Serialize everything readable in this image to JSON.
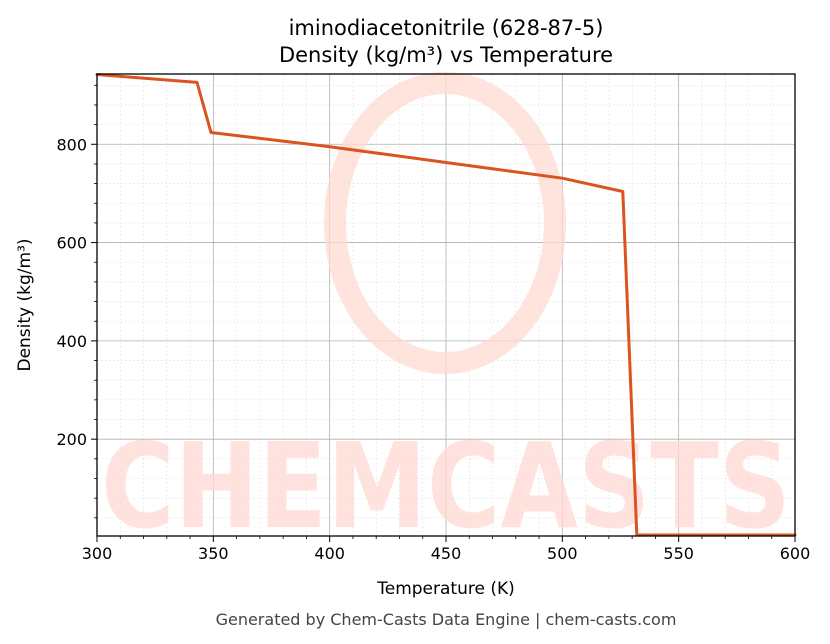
{
  "chart_data": {
    "type": "line",
    "title": "iminodiacetonitrile (628-87-5)",
    "subtitle": "Density (kg/m³) vs Temperature",
    "xlabel": "Temperature (K)",
    "ylabel": "Density (kg/m³)",
    "xlim": [
      300,
      600
    ],
    "ylim": [
      3,
      943
    ],
    "x_ticks": [
      300,
      350,
      400,
      450,
      500,
      550,
      600
    ],
    "y_ticks": [
      200,
      400,
      600,
      800
    ],
    "grid": true,
    "series": [
      {
        "color": "#d9541e",
        "x": [
          300,
          343,
          349,
          400,
          450,
          500,
          526,
          532,
          600
        ],
        "y": [
          942,
          926,
          824,
          795,
          763,
          731,
          704,
          5,
          5
        ]
      }
    ]
  },
  "footer": "Generated by Chem-Casts Data Engine | chem-casts.com",
  "watermark": "CHEMCASTS"
}
